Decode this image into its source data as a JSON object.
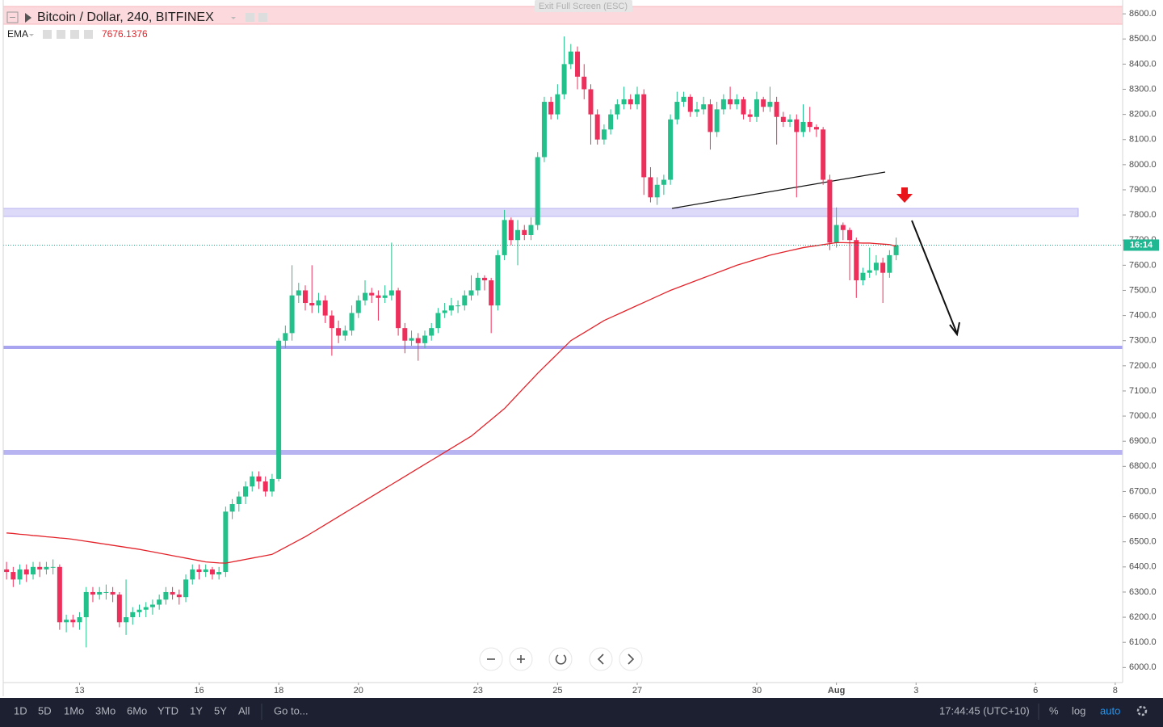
{
  "chart_data": {
    "type": "candlestick",
    "title": "Bitcoin / Dollar, 240, BITFINEX",
    "up_color": "#22c08a",
    "down_color": "#ee2f5b",
    "categories": [
      null,
      null,
      null,
      null,
      null,
      null,
      null,
      null,
      null,
      null,
      null,
      "13",
      null,
      null,
      null,
      null,
      null,
      null,
      null,
      null,
      null,
      null,
      null,
      null,
      null,
      null,
      null,
      null,
      null,
      "16",
      null,
      null,
      null,
      null,
      null,
      null,
      null,
      null,
      null,
      null,
      null,
      "18",
      null,
      null,
      null,
      null,
      null,
      null,
      null,
      null,
      null,
      null,
      null,
      "20",
      null,
      null,
      null,
      null,
      null,
      null,
      null,
      null,
      null,
      null,
      null,
      null,
      null,
      null,
      null,
      null,
      null,
      "23",
      null,
      null,
      null,
      null,
      null,
      null,
      null,
      null,
      null,
      null,
      null,
      "25",
      null,
      null,
      null,
      null,
      null,
      null,
      null,
      null,
      null,
      null,
      null,
      "27",
      null,
      null,
      null,
      null,
      null,
      null,
      null,
      null,
      null,
      null,
      null,
      null,
      null,
      null,
      null,
      null,
      null,
      "30",
      null,
      null,
      null,
      null,
      null,
      null,
      null,
      null,
      null,
      null,
      null,
      "Aug",
      null,
      null,
      null,
      null,
      null,
      null,
      null,
      null,
      null,
      null,
      null,
      "3",
      null,
      null,
      null,
      null,
      null,
      null,
      null,
      null,
      null,
      null,
      null,
      null,
      null,
      null,
      null,
      null,
      null,
      "6",
      null,
      null,
      null,
      null,
      null,
      null,
      null,
      null,
      null,
      null,
      null,
      "8",
      null
    ],
    "ohlc": [
      [
        6390,
        6420,
        6350,
        6380
      ],
      [
        6380,
        6400,
        6320,
        6350
      ],
      [
        6350,
        6410,
        6330,
        6390
      ],
      [
        6390,
        6410,
        6340,
        6370
      ],
      [
        6370,
        6420,
        6350,
        6400
      ],
      [
        6400,
        6420,
        6360,
        6390
      ],
      [
        6390,
        6420,
        6370,
        6400
      ],
      [
        6400,
        6430,
        6370,
        6400
      ],
      [
        6400,
        6410,
        6150,
        6180
      ],
      [
        6180,
        6210,
        6140,
        6190
      ],
      [
        6190,
        6210,
        6160,
        6180
      ],
      [
        6180,
        6220,
        6150,
        6200
      ],
      [
        6200,
        6320,
        6080,
        6300
      ],
      [
        6300,
        6320,
        6260,
        6290
      ],
      [
        6290,
        6320,
        6270,
        6300
      ],
      [
        6300,
        6330,
        6270,
        6300
      ],
      [
        6300,
        6320,
        6260,
        6290
      ],
      [
        6290,
        6300,
        6160,
        6180
      ],
      [
        6180,
        6350,
        6130,
        6200
      ],
      [
        6200,
        6240,
        6170,
        6220
      ],
      [
        6220,
        6250,
        6200,
        6230
      ],
      [
        6230,
        6260,
        6200,
        6240
      ],
      [
        6240,
        6270,
        6210,
        6250
      ],
      [
        6250,
        6290,
        6230,
        6270
      ],
      [
        6270,
        6320,
        6250,
        6300
      ],
      [
        6300,
        6320,
        6270,
        6290
      ],
      [
        6290,
        6310,
        6250,
        6280
      ],
      [
        6280,
        6370,
        6260,
        6350
      ],
      [
        6350,
        6410,
        6330,
        6390
      ],
      [
        6390,
        6410,
        6350,
        6380
      ],
      [
        6380,
        6410,
        6360,
        6390
      ],
      [
        6390,
        6400,
        6350,
        6370
      ],
      [
        6370,
        6400,
        6350,
        6380
      ],
      [
        6380,
        6640,
        6360,
        6620
      ],
      [
        6620,
        6670,
        6590,
        6650
      ],
      [
        6650,
        6700,
        6620,
        6680
      ],
      [
        6680,
        6740,
        6650,
        6720
      ],
      [
        6720,
        6780,
        6700,
        6760
      ],
      [
        6760,
        6780,
        6710,
        6740
      ],
      [
        6740,
        6760,
        6680,
        6700
      ],
      [
        6700,
        6770,
        6680,
        6750
      ],
      [
        6750,
        7310,
        6740,
        7300
      ],
      [
        7300,
        7360,
        7270,
        7330
      ],
      [
        7330,
        7600,
        7300,
        7480
      ],
      [
        7480,
        7530,
        7450,
        7500
      ],
      [
        7500,
        7520,
        7420,
        7450
      ],
      [
        7450,
        7600,
        7410,
        7440
      ],
      [
        7440,
        7490,
        7410,
        7460
      ],
      [
        7460,
        7480,
        7370,
        7400
      ],
      [
        7400,
        7420,
        7240,
        7350
      ],
      [
        7350,
        7380,
        7290,
        7320
      ],
      [
        7320,
        7360,
        7300,
        7340
      ],
      [
        7340,
        7440,
        7320,
        7410
      ],
      [
        7410,
        7480,
        7390,
        7460
      ],
      [
        7460,
        7540,
        7440,
        7490
      ],
      [
        7490,
        7510,
        7450,
        7480
      ],
      [
        7480,
        7500,
        7380,
        7470
      ],
      [
        7470,
        7520,
        7450,
        7480
      ],
      [
        7480,
        7690,
        7460,
        7500
      ],
      [
        7500,
        7510,
        7320,
        7350
      ],
      [
        7350,
        7370,
        7250,
        7300
      ],
      [
        7300,
        7340,
        7280,
        7310
      ],
      [
        7310,
        7330,
        7220,
        7290
      ],
      [
        7290,
        7340,
        7270,
        7320
      ],
      [
        7320,
        7370,
        7300,
        7350
      ],
      [
        7350,
        7430,
        7330,
        7410
      ],
      [
        7410,
        7450,
        7390,
        7420
      ],
      [
        7420,
        7470,
        7400,
        7440
      ],
      [
        7440,
        7460,
        7410,
        7440
      ],
      [
        7440,
        7500,
        7420,
        7480
      ],
      [
        7480,
        7560,
        7460,
        7500
      ],
      [
        7500,
        7570,
        7480,
        7550
      ],
      [
        7550,
        7560,
        7500,
        7540
      ],
      [
        7540,
        7550,
        7330,
        7440
      ],
      [
        7440,
        7660,
        7420,
        7640
      ],
      [
        7640,
        7820,
        7620,
        7780
      ],
      [
        7780,
        7790,
        7680,
        7700
      ],
      [
        7700,
        7780,
        7600,
        7740
      ],
      [
        7740,
        7760,
        7700,
        7720
      ],
      [
        7720,
        7790,
        7700,
        7760
      ],
      [
        7760,
        8050,
        7740,
        8030
      ],
      [
        8030,
        8270,
        8010,
        8250
      ],
      [
        8250,
        8270,
        8180,
        8200
      ],
      [
        8200,
        8320,
        8180,
        8280
      ],
      [
        8280,
        8510,
        8260,
        8400
      ],
      [
        8400,
        8480,
        8380,
        8450
      ],
      [
        8450,
        8470,
        8300,
        8350
      ],
      [
        8350,
        8400,
        8260,
        8300
      ],
      [
        8300,
        8320,
        8080,
        8200
      ],
      [
        8200,
        8220,
        8080,
        8100
      ],
      [
        8100,
        8160,
        8080,
        8140
      ],
      [
        8140,
        8220,
        8120,
        8200
      ],
      [
        8200,
        8260,
        8180,
        8240
      ],
      [
        8240,
        8310,
        8220,
        8260
      ],
      [
        8260,
        8280,
        8220,
        8240
      ],
      [
        8240,
        8310,
        8220,
        8280
      ],
      [
        8280,
        8300,
        7880,
        7950
      ],
      [
        7950,
        7990,
        7850,
        7870
      ],
      [
        7870,
        7950,
        7840,
        7920
      ],
      [
        7920,
        7960,
        7880,
        7940
      ],
      [
        7940,
        8200,
        7920,
        8180
      ],
      [
        8180,
        8290,
        8160,
        8250
      ],
      [
        8250,
        8290,
        8230,
        8270
      ],
      [
        8270,
        8280,
        8190,
        8210
      ],
      [
        8210,
        8250,
        8190,
        8220
      ],
      [
        8220,
        8270,
        8200,
        8240
      ],
      [
        8240,
        8260,
        8060,
        8130
      ],
      [
        8130,
        8250,
        8110,
        8220
      ],
      [
        8220,
        8280,
        8200,
        8260
      ],
      [
        8260,
        8310,
        8220,
        8240
      ],
      [
        8240,
        8280,
        8220,
        8260
      ],
      [
        8260,
        8270,
        8180,
        8200
      ],
      [
        8200,
        8220,
        8170,
        8190
      ],
      [
        8190,
        8290,
        8170,
        8260
      ],
      [
        8260,
        8270,
        8210,
        8230
      ],
      [
        8230,
        8310,
        8210,
        8250
      ],
      [
        8250,
        8270,
        8080,
        8190
      ],
      [
        8190,
        8210,
        8150,
        8170
      ],
      [
        8170,
        8200,
        8150,
        8180
      ],
      [
        8180,
        8200,
        7870,
        8130
      ],
      [
        8130,
        8240,
        8110,
        8170
      ],
      [
        8170,
        8230,
        8130,
        8150
      ],
      [
        8150,
        8160,
        8110,
        8140
      ],
      [
        8140,
        8150,
        7920,
        7940
      ],
      [
        7940,
        7960,
        7660,
        7690
      ],
      [
        7690,
        7830,
        7670,
        7760
      ],
      [
        7760,
        7770,
        7700,
        7740
      ],
      [
        7740,
        7750,
        7540,
        7700
      ],
      [
        7700,
        7710,
        7470,
        7540
      ],
      [
        7540,
        7590,
        7520,
        7570
      ],
      [
        7570,
        7670,
        7550,
        7580
      ],
      [
        7580,
        7640,
        7560,
        7610
      ],
      [
        7610,
        7630,
        7450,
        7570
      ],
      [
        7570,
        7660,
        7550,
        7640
      ],
      [
        7640,
        7710,
        7620,
        7680
      ],
      null,
      null,
      null,
      null,
      null,
      null,
      null,
      null,
      null,
      null,
      null,
      null,
      null,
      null,
      null,
      null,
      null,
      null,
      null,
      null,
      null,
      null,
      null,
      null,
      null,
      null,
      null,
      null,
      null,
      null,
      null,
      null,
      null,
      null
    ],
    "series": [
      {
        "name": "EMA",
        "color": "#e3232a",
        "values": [
          6535,
          6533,
          6530,
          6528,
          6525,
          6523,
          6520,
          6518,
          6515,
          6513,
          6510,
          6506,
          6502,
          6498,
          6494,
          6490,
          6486,
          6482,
          6478,
          6474,
          6470,
          6465,
          6460,
          6455,
          6450,
          6445,
          6440,
          6435,
          6430,
          6425,
          6420,
          6418,
          6416,
          6415,
          6420,
          6425,
          6430,
          6435,
          6440,
          6445,
          6450,
          6464,
          6478,
          6492,
          6506,
          6520,
          6536,
          6552,
          6568,
          6584,
          6600,
          6616,
          6632,
          6648,
          6664,
          6680,
          6696,
          6712,
          6728,
          6744,
          6760,
          6776,
          6792,
          6808,
          6824,
          6840,
          6856,
          6872,
          6888,
          6904,
          6920,
          6942,
          6964,
          6986,
          7008,
          7030,
          7058,
          7086,
          7114,
          7142,
          7170,
          7196,
          7222,
          7248,
          7274,
          7300,
          7316,
          7332,
          7348,
          7364,
          7380,
          7392,
          7404,
          7416,
          7428,
          7440,
          7452,
          7464,
          7476,
          7488,
          7500,
          7510,
          7520,
          7530,
          7540,
          7550,
          7560,
          7570,
          7580,
          7590,
          7600,
          7608,
          7616,
          7624,
          7632,
          7640,
          7646,
          7652,
          7658,
          7664,
          7670,
          7674,
          7678,
          7682,
          7686,
          7690,
          7690,
          7689,
          7689,
          7688,
          7688,
          7686,
          7684,
          7682,
          7676,
          null,
          null,
          null,
          null,
          null,
          null,
          null,
          null,
          null,
          null,
          null,
          null,
          null,
          null,
          null,
          null,
          null,
          null,
          null,
          null,
          null,
          null,
          null,
          null,
          null,
          null,
          null,
          null,
          null,
          null,
          null,
          null,
          null,
          null
        ]
      }
    ],
    "ema_value": 7676.1376,
    "ylim": [
      5940,
      8655
    ],
    "yticks": [
      {
        "value": 6000,
        "label": "6000.0"
      },
      {
        "value": 6100,
        "label": "6100.0"
      },
      {
        "value": 6200,
        "label": "6200.0"
      },
      {
        "value": 6300,
        "label": "6300.0"
      },
      {
        "value": 6400,
        "label": "6400.0"
      },
      {
        "value": 6500,
        "label": "6500.0"
      },
      {
        "value": 6600,
        "label": "6600.0"
      },
      {
        "value": 6700,
        "label": "6700.0"
      },
      {
        "value": 6800,
        "label": "6800.0"
      },
      {
        "value": 6900,
        "label": "6900.0"
      },
      {
        "value": 7000,
        "label": "7000.0"
      },
      {
        "value": 7100,
        "label": "7100.0"
      },
      {
        "value": 7200,
        "label": "7200.0"
      },
      {
        "value": 7300,
        "label": "7300.0"
      },
      {
        "value": 7400,
        "label": "7400.0"
      },
      {
        "value": 7500,
        "label": "7500.0"
      },
      {
        "value": 7600,
        "label": "7600.0"
      },
      {
        "value": 7700,
        "label": "7700.0"
      },
      {
        "value": 7800,
        "label": "7800.0"
      },
      {
        "value": 7900,
        "label": "7900.0"
      },
      {
        "value": 8000,
        "label": "8000.0"
      },
      {
        "value": 8100,
        "label": "8100.0"
      },
      {
        "value": 8200,
        "label": "8200.0"
      },
      {
        "value": 8300,
        "label": "8300.0"
      },
      {
        "value": 8400,
        "label": "8400.0"
      },
      {
        "value": 8500,
        "label": "8500.0"
      },
      {
        "value": 8600,
        "label": "8600.0"
      }
    ],
    "grid": false
  },
  "ui": {
    "exit_fullscreen": "Exit Full Screen (ESC)",
    "countdown": "16:14",
    "ranges": [
      "1D",
      "5D",
      "1Mo",
      "3Mo",
      "6Mo",
      "YTD",
      "1Y",
      "5Y",
      "All"
    ],
    "goto": "Go to...",
    "clock": "17:44:45 (UTC+10)",
    "percent": "%",
    "log": "log",
    "auto": "auto"
  }
}
